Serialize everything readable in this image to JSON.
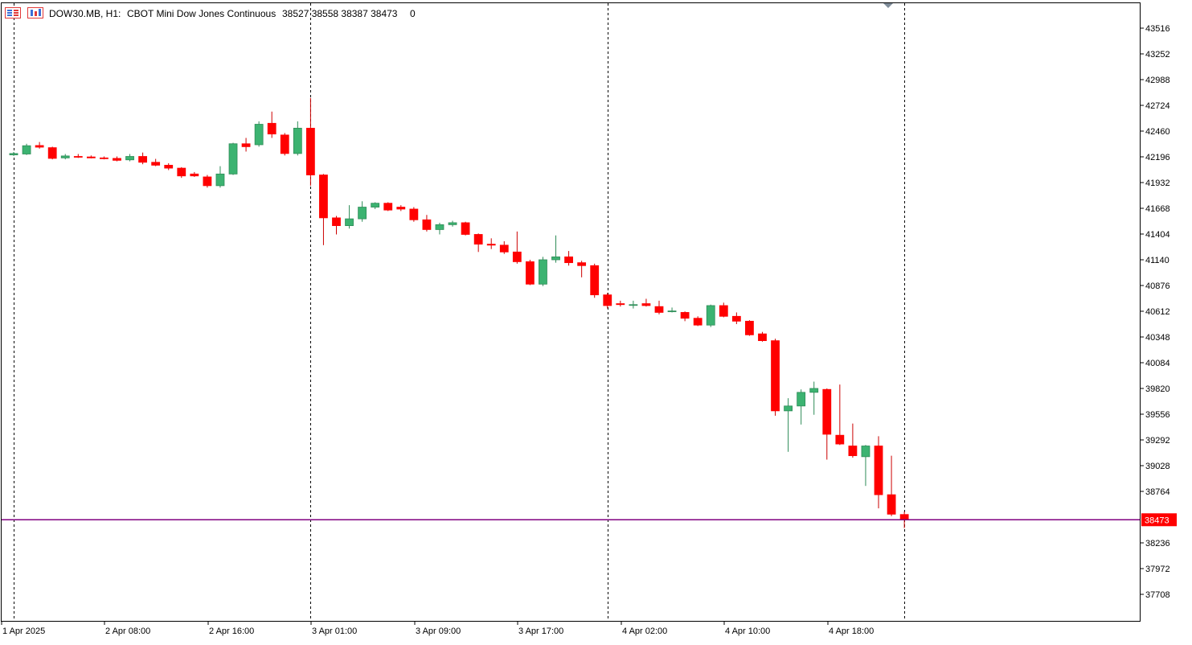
{
  "header": {
    "symbol": "DOW30.MB, H1:",
    "description": "CBOT Mini Dow Jones Continuous",
    "ohlc": "38527 38558 38387 38473",
    "extra": "0",
    "icons": [
      "trading-panel-icon",
      "chart-indicator-icon"
    ]
  },
  "colors": {
    "bull": "#3cb371",
    "bear": "#ff0000",
    "wick_bull": "#2e8b57",
    "wick_bear": "#cc0000",
    "price_line": "#800080",
    "price_label_bg": "#ff0000",
    "axis": "#000000",
    "separator": "#000000",
    "shift_marker": "#7f8c99"
  },
  "chart_data": {
    "type": "candlestick",
    "symbol": "DOW30.MB",
    "timeframe": "H1",
    "ylim": [
      37500,
      43700
    ],
    "y_ticks": [
      43516,
      43252,
      42988,
      42724,
      42460,
      42196,
      41932,
      41668,
      41404,
      41140,
      40876,
      40612,
      40348,
      40084,
      39820,
      39556,
      39292,
      39028,
      38764,
      38236,
      37972,
      37708
    ],
    "x_ticks": [
      "1 Apr 2025",
      "2 Apr 08:00",
      "2 Apr 16:00",
      "3 Apr 01:00",
      "3 Apr 09:00",
      "3 Apr 17:00",
      "4 Apr 02:00",
      "4 Apr 10:00",
      "4 Apr 18:00"
    ],
    "x_tick_bar_index": [
      0,
      8,
      16,
      24,
      32,
      40,
      48,
      56,
      64
    ],
    "day_separator_bar_index": [
      0,
      23,
      46,
      69
    ],
    "current_price": 38473,
    "current_price_label": "38473",
    "grid": false,
    "candles": [
      {
        "o": 42216,
        "h": 42245,
        "l": 42205,
        "c": 42230
      },
      {
        "o": 42225,
        "h": 42330,
        "l": 42215,
        "c": 42310
      },
      {
        "o": 42312,
        "h": 42348,
        "l": 42280,
        "c": 42295
      },
      {
        "o": 42290,
        "h": 42300,
        "l": 42170,
        "c": 42180
      },
      {
        "o": 42185,
        "h": 42225,
        "l": 42170,
        "c": 42205
      },
      {
        "o": 42200,
        "h": 42225,
        "l": 42185,
        "c": 42195
      },
      {
        "o": 42195,
        "h": 42210,
        "l": 42180,
        "c": 42185
      },
      {
        "o": 42185,
        "h": 42200,
        "l": 42170,
        "c": 42180
      },
      {
        "o": 42180,
        "h": 42200,
        "l": 42150,
        "c": 42160
      },
      {
        "o": 42165,
        "h": 42225,
        "l": 42150,
        "c": 42200
      },
      {
        "o": 42200,
        "h": 42240,
        "l": 42120,
        "c": 42140
      },
      {
        "o": 42140,
        "h": 42175,
        "l": 42100,
        "c": 42110
      },
      {
        "o": 42110,
        "h": 42130,
        "l": 42060,
        "c": 42080
      },
      {
        "o": 42080,
        "h": 42090,
        "l": 41980,
        "c": 42000
      },
      {
        "o": 42020,
        "h": 42040,
        "l": 41990,
        "c": 42000
      },
      {
        "o": 41990,
        "h": 42010,
        "l": 41880,
        "c": 41900
      },
      {
        "o": 41900,
        "h": 42100,
        "l": 41880,
        "c": 42020
      },
      {
        "o": 42020,
        "h": 42340,
        "l": 42010,
        "c": 42330
      },
      {
        "o": 42330,
        "h": 42390,
        "l": 42250,
        "c": 42300
      },
      {
        "o": 42320,
        "h": 42560,
        "l": 42300,
        "c": 42530
      },
      {
        "o": 42540,
        "h": 42660,
        "l": 42390,
        "c": 42430
      },
      {
        "o": 42420,
        "h": 42440,
        "l": 42210,
        "c": 42230
      },
      {
        "o": 42230,
        "h": 42560,
        "l": 42210,
        "c": 42490
      },
      {
        "o": 42490,
        "h": 42800,
        "l": 41900,
        "c": 42010
      },
      {
        "o": 42010,
        "h": 42020,
        "l": 41290,
        "c": 41570
      },
      {
        "o": 41570,
        "h": 41590,
        "l": 41400,
        "c": 41490
      },
      {
        "o": 41490,
        "h": 41700,
        "l": 41460,
        "c": 41560
      },
      {
        "o": 41560,
        "h": 41740,
        "l": 41530,
        "c": 41680
      },
      {
        "o": 41680,
        "h": 41730,
        "l": 41660,
        "c": 41720
      },
      {
        "o": 41720,
        "h": 41730,
        "l": 41640,
        "c": 41650
      },
      {
        "o": 41680,
        "h": 41700,
        "l": 41640,
        "c": 41660
      },
      {
        "o": 41660,
        "h": 41680,
        "l": 41530,
        "c": 41550
      },
      {
        "o": 41550,
        "h": 41600,
        "l": 41430,
        "c": 41450
      },
      {
        "o": 41450,
        "h": 41520,
        "l": 41400,
        "c": 41500
      },
      {
        "o": 41500,
        "h": 41540,
        "l": 41480,
        "c": 41520
      },
      {
        "o": 41520,
        "h": 41530,
        "l": 41390,
        "c": 41400
      },
      {
        "o": 41400,
        "h": 41410,
        "l": 41220,
        "c": 41300
      },
      {
        "o": 41300,
        "h": 41360,
        "l": 41250,
        "c": 41290
      },
      {
        "o": 41290,
        "h": 41330,
        "l": 41200,
        "c": 41220
      },
      {
        "o": 41220,
        "h": 41430,
        "l": 41100,
        "c": 41120
      },
      {
        "o": 41120,
        "h": 41140,
        "l": 40880,
        "c": 40890
      },
      {
        "o": 40890,
        "h": 41170,
        "l": 40870,
        "c": 41140
      },
      {
        "o": 41140,
        "h": 41390,
        "l": 41110,
        "c": 41170
      },
      {
        "o": 41170,
        "h": 41230,
        "l": 41080,
        "c": 41110
      },
      {
        "o": 41110,
        "h": 41130,
        "l": 40960,
        "c": 41080
      },
      {
        "o": 41080,
        "h": 41100,
        "l": 40750,
        "c": 40780
      },
      {
        "o": 40780,
        "h": 40800,
        "l": 40640,
        "c": 40670
      },
      {
        "o": 40690,
        "h": 40720,
        "l": 40660,
        "c": 40680
      },
      {
        "o": 40680,
        "h": 40720,
        "l": 40640,
        "c": 40680
      },
      {
        "o": 40690,
        "h": 40740,
        "l": 40660,
        "c": 40670
      },
      {
        "o": 40660,
        "h": 40720,
        "l": 40580,
        "c": 40600
      },
      {
        "o": 40610,
        "h": 40650,
        "l": 40600,
        "c": 40615
      },
      {
        "o": 40600,
        "h": 40610,
        "l": 40510,
        "c": 40540
      },
      {
        "o": 40540,
        "h": 40560,
        "l": 40460,
        "c": 40470
      },
      {
        "o": 40470,
        "h": 40680,
        "l": 40450,
        "c": 40670
      },
      {
        "o": 40670,
        "h": 40700,
        "l": 40550,
        "c": 40560
      },
      {
        "o": 40560,
        "h": 40600,
        "l": 40480,
        "c": 40510
      },
      {
        "o": 40510,
        "h": 40520,
        "l": 40360,
        "c": 40370
      },
      {
        "o": 40380,
        "h": 40400,
        "l": 40300,
        "c": 40310
      },
      {
        "o": 40310,
        "h": 40330,
        "l": 39540,
        "c": 39590
      },
      {
        "o": 39590,
        "h": 39720,
        "l": 39170,
        "c": 39640
      },
      {
        "o": 39640,
        "h": 39810,
        "l": 39450,
        "c": 39780
      },
      {
        "o": 39780,
        "h": 39890,
        "l": 39550,
        "c": 39820
      },
      {
        "o": 39810,
        "h": 39820,
        "l": 39090,
        "c": 39350
      },
      {
        "o": 39340,
        "h": 39860,
        "l": 39240,
        "c": 39250
      },
      {
        "o": 39230,
        "h": 39460,
        "l": 39110,
        "c": 39130
      },
      {
        "o": 39120,
        "h": 39240,
        "l": 38820,
        "c": 39230
      },
      {
        "o": 39230,
        "h": 39330,
        "l": 38590,
        "c": 38730
      },
      {
        "o": 38730,
        "h": 39130,
        "l": 38510,
        "c": 38530
      },
      {
        "o": 38527,
        "h": 38558,
        "l": 38387,
        "c": 38473
      }
    ]
  }
}
